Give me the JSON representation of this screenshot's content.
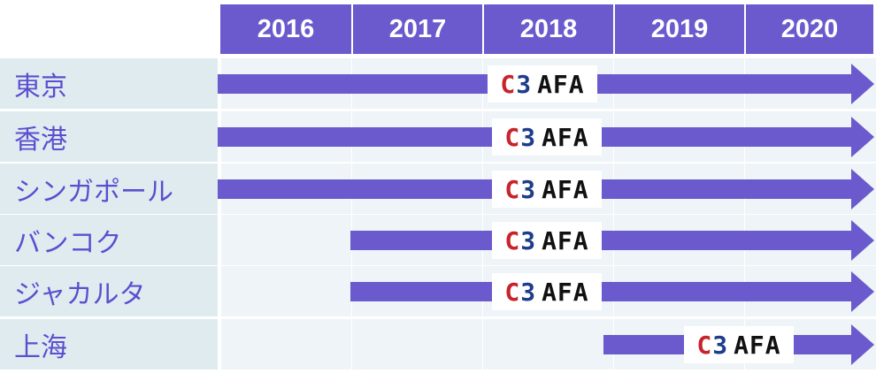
{
  "years": [
    "2016",
    "2017",
    "2018",
    "2019",
    "2020"
  ],
  "rows": [
    {
      "city": "東京",
      "start_year": "2016"
    },
    {
      "city": "香港",
      "start_year": "2016"
    },
    {
      "city": "シンガポール",
      "start_year": "2016"
    },
    {
      "city": "バンコク",
      "start_year": "2017"
    },
    {
      "city": "ジャカルタ",
      "start_year": "2017"
    },
    {
      "city": "上海",
      "start_year": "2019"
    }
  ],
  "logo": {
    "c": "C",
    "three": "3",
    "afa": "AFA",
    "icon": "c3afa-logo"
  },
  "colors": {
    "accent": "#6a5acd",
    "row_bg": "#e0ebf0",
    "logo_red": "#c8232b",
    "logo_blue": "#1e3c8c"
  }
}
